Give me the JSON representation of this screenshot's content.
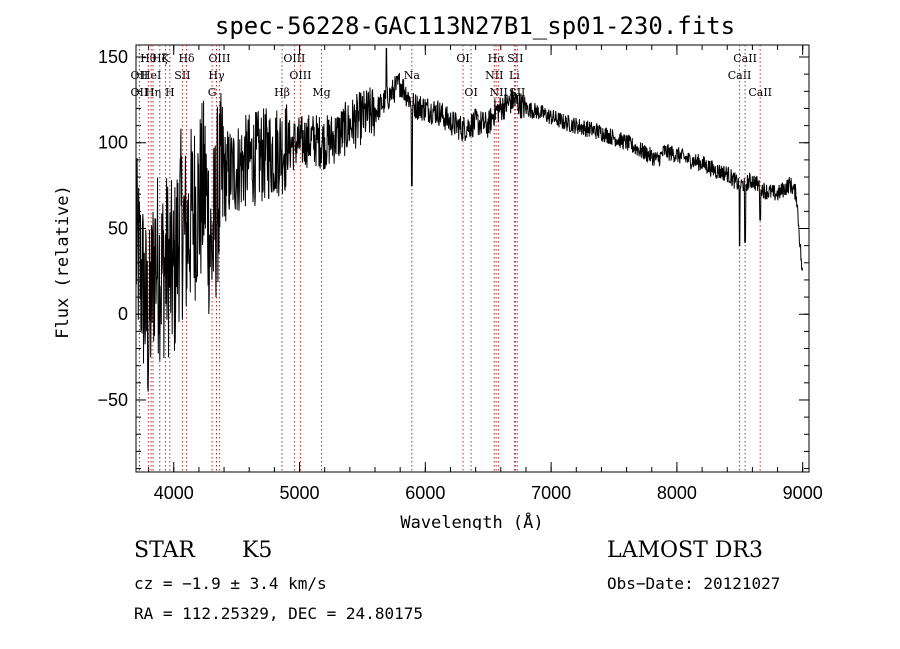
{
  "chart_data": {
    "type": "line",
    "title": "spec-56228-GAC113N27B1_sp01-230.fits",
    "xlabel": "Wavelength (Å)",
    "ylabel": "Flux (relative)",
    "xlim": [
      3700,
      9050
    ],
    "ylim": [
      -92,
      157
    ],
    "xticks": [
      4000,
      5000,
      6000,
      7000,
      8000,
      9000
    ],
    "yticks": [
      -50,
      0,
      50,
      100,
      150
    ],
    "series": [
      {
        "name": "flux",
        "x": [
          3700,
          3750,
          3800,
          3850,
          3900,
          3950,
          4000,
          4050,
          4100,
          4150,
          4200,
          4250,
          4300,
          4350,
          4400,
          4500,
          4600,
          4700,
          4800,
          4900,
          5000,
          5100,
          5200,
          5300,
          5400,
          5500,
          5600,
          5700,
          5800,
          5900,
          6000,
          6100,
          6200,
          6300,
          6400,
          6500,
          6550,
          6600,
          6700,
          6800,
          6900,
          7000,
          7100,
          7200,
          7300,
          7400,
          7500,
          7600,
          7700,
          7800,
          7850,
          7900,
          8000,
          8100,
          8200,
          8300,
          8400,
          8500,
          8600,
          8700,
          8800,
          8900,
          8950,
          9000
        ],
        "y": [
          40,
          20,
          -10,
          35,
          25,
          30,
          20,
          55,
          45,
          60,
          65,
          75,
          35,
          70,
          80,
          85,
          90,
          92,
          95,
          98,
          100,
          102,
          100,
          104,
          110,
          115,
          118,
          126,
          135,
          122,
          120,
          118,
          112,
          108,
          112,
          110,
          118,
          120,
          125,
          120,
          118,
          115,
          112,
          110,
          108,
          106,
          103,
          100,
          96,
          92,
          90,
          95,
          93,
          90,
          88,
          84,
          82,
          75,
          78,
          72,
          70,
          76,
          70,
          20
        ]
      }
    ],
    "lines": [
      {
        "label": "Hθ",
        "x": 3798,
        "row": 0
      },
      {
        "label": "OII",
        "x": 3727,
        "row": 1
      },
      {
        "label": "OII",
        "x": 3727,
        "row": 2
      },
      {
        "label": "HeI",
        "x": 3820,
        "row": 1
      },
      {
        "label": "Hη",
        "x": 3835,
        "row": 2
      },
      {
        "label": "Hζ",
        "x": 3889,
        "row": 0
      },
      {
        "label": "K",
        "x": 3934,
        "row": 0
      },
      {
        "label": "H",
        "x": 3969,
        "row": 2
      },
      {
        "label": "SII",
        "x": 4069,
        "row": 1
      },
      {
        "label": "Hδ",
        "x": 4102,
        "row": 0
      },
      {
        "label": "G",
        "x": 4305,
        "row": 2
      },
      {
        "label": "Hγ",
        "x": 4340,
        "row": 1
      },
      {
        "label": "OIII",
        "x": 4363,
        "row": 0
      },
      {
        "label": "Hβ",
        "x": 4861,
        "row": 2
      },
      {
        "label": "OIII",
        "x": 4959,
        "row": 0
      },
      {
        "label": "OIII",
        "x": 5007,
        "row": 1
      },
      {
        "label": "Mg",
        "x": 5175,
        "row": 2
      },
      {
        "label": "Na",
        "x": 5893,
        "row": 1
      },
      {
        "label": "OI",
        "x": 6300,
        "row": 0
      },
      {
        "label": "OI",
        "x": 6364,
        "row": 2
      },
      {
        "label": "NII",
        "x": 6548,
        "row": 1
      },
      {
        "label": "Hα",
        "x": 6563,
        "row": 0
      },
      {
        "label": "NII",
        "x": 6583,
        "row": 2
      },
      {
        "label": "Li",
        "x": 6708,
        "row": 1
      },
      {
        "label": "SII",
        "x": 6716,
        "row": 0
      },
      {
        "label": "SII",
        "x": 6731,
        "row": 2
      },
      {
        "label": "CaII",
        "x": 8498,
        "row": 1
      },
      {
        "label": "CaII",
        "x": 8542,
        "row": 0
      },
      {
        "label": "CaII",
        "x": 8662,
        "row": 2
      }
    ]
  },
  "info": {
    "class": "STAR",
    "subclass": "K5",
    "survey": "LAMOST DR3",
    "cz": "cz = −1.9 ± 3.4 km/s",
    "obs_date": "Obs−Date: 20121027",
    "coords": "RA = 112.25329, DEC =  24.80175"
  }
}
